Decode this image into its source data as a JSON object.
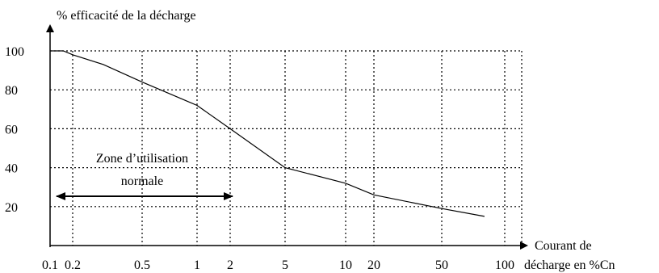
{
  "chart_data": {
    "type": "line",
    "title": "",
    "ylabel": "% efficacité de la décharge",
    "xlabel": [
      "Courant de",
      "décharge en %Cn"
    ],
    "x_ticks": [
      "0.1",
      "0.2",
      "0.5",
      "1",
      "2",
      "5",
      "10",
      "20",
      "50",
      "100"
    ],
    "y_ticks": [
      "100",
      "80",
      "60",
      "40",
      "20"
    ],
    "x_scale": "tick-index",
    "ylim": [
      0,
      120
    ],
    "grid": true,
    "series": [
      {
        "x": [
          0.1,
          0.15,
          0.2,
          0.3,
          0.5,
          1,
          2,
          5,
          10,
          20,
          50,
          80
        ],
        "y": [
          100,
          100,
          98,
          93,
          84,
          72,
          60,
          40,
          32,
          26,
          19,
          15
        ]
      }
    ],
    "annotation": {
      "lines": [
        "Zone d’utilisation",
        "normale"
      ],
      "range": [
        "0.1",
        "2"
      ]
    }
  }
}
